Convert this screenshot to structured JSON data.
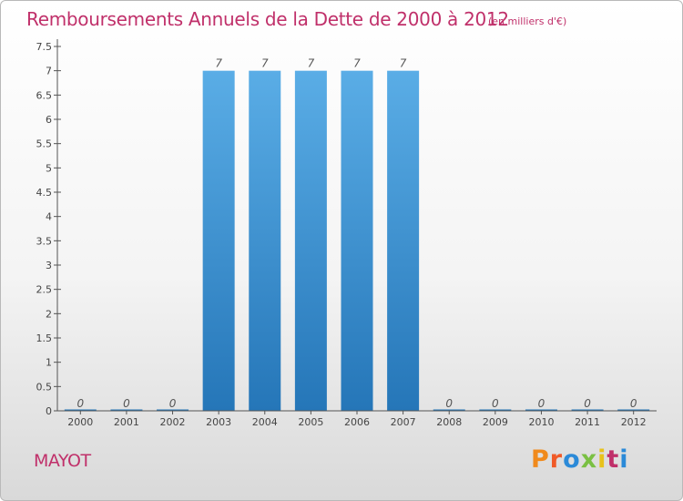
{
  "header": {
    "title": "Remboursements Annuels de la Dette de 2000 à 2012",
    "unit_note": "(en milliers d'€)"
  },
  "footer": {
    "commune": "MAYOT",
    "brand": "Proxiti",
    "brand_colors": [
      "#f08a1c",
      "#f05a28",
      "#2b8ad8",
      "#7ac043",
      "#e8c21c",
      "#c0306a",
      "#2b8ad8"
    ]
  },
  "colors": {
    "bar_top": "#5aade6",
    "bar_bottom": "#2576b8",
    "accent": "#c0306a",
    "axis": "#555555"
  },
  "chart_data": {
    "type": "bar",
    "title": "Remboursements Annuels de la Dette de 2000 à 2012",
    "xlabel": "",
    "ylabel": "",
    "categories": [
      "2000",
      "2001",
      "2002",
      "2003",
      "2004",
      "2005",
      "2006",
      "2007",
      "2008",
      "2009",
      "2010",
      "2011",
      "2012"
    ],
    "values": [
      0,
      0,
      0,
      7,
      7,
      7,
      7,
      7,
      0,
      0,
      0,
      0,
      0
    ],
    "data_labels": [
      "0",
      "0",
      "0",
      "7",
      "7",
      "7",
      "7",
      "7",
      "0",
      "0",
      "0",
      "0",
      "0"
    ],
    "ylim": [
      0,
      7.5
    ],
    "y_ticks": [
      0,
      0.5,
      1,
      1.5,
      2,
      2.5,
      3,
      3.5,
      4,
      4.5,
      5,
      5.5,
      6,
      6.5,
      7,
      7.5
    ],
    "y_tick_labels": [
      "0",
      "0.5",
      "1",
      "1.5",
      "2",
      "2.5",
      "3",
      "3.5",
      "4",
      "4.5",
      "5",
      "5.5",
      "6",
      "6.5",
      "7",
      "7.5"
    ],
    "grid": false,
    "legend": "none"
  }
}
